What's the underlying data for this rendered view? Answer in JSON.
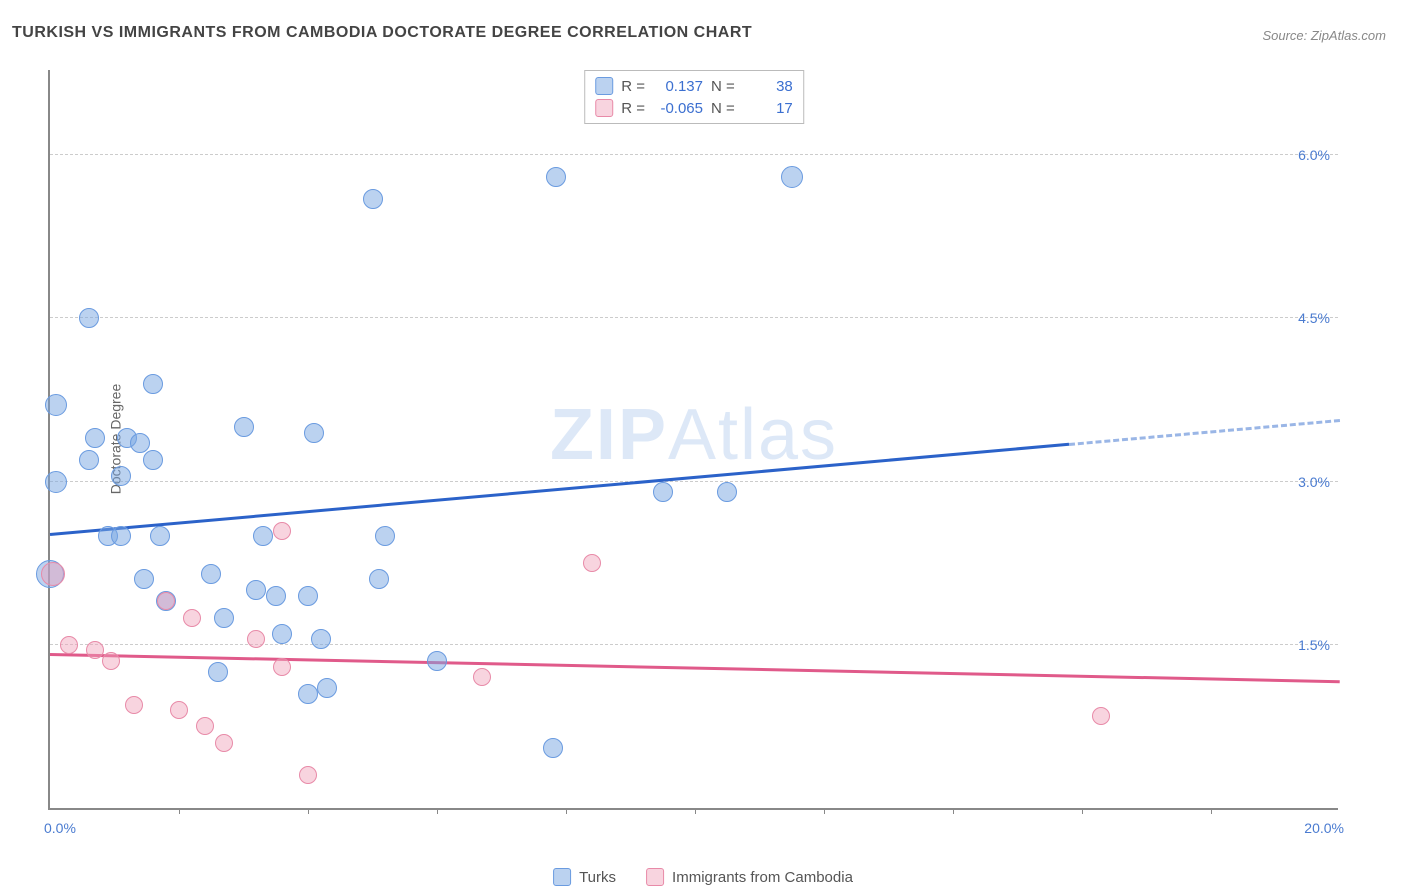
{
  "title": "TURKISH VS IMMIGRANTS FROM CAMBODIA DOCTORATE DEGREE CORRELATION CHART",
  "source_prefix": "Source: ",
  "source_name": "ZipAtlas.com",
  "ylabel": "Doctorate Degree",
  "watermark_bold": "ZIP",
  "watermark_rest": "Atlas",
  "chart": {
    "type": "scatter",
    "xlim": [
      0.0,
      20.0
    ],
    "ylim": [
      0.0,
      6.8
    ],
    "y_gridlines": [
      1.5,
      3.0,
      4.5,
      6.0
    ],
    "y_tick_labels": [
      "1.5%",
      "3.0%",
      "4.5%",
      "6.0%"
    ],
    "x_ticks": [
      2,
      4,
      6,
      8,
      10,
      12,
      14,
      16,
      18
    ],
    "x_first_label": "0.0%",
    "x_last_label": "20.0%",
    "grid_color": "#cccccc",
    "axis_color": "#888888",
    "background_color": "#ffffff",
    "series": [
      {
        "id": "a",
        "name": "Turks",
        "marker_fill": "rgba(120,165,225,0.5)",
        "marker_stroke": "#6a9be0",
        "line_color": "#2b62c9",
        "points": [
          {
            "x": 0.1,
            "y": 3.7,
            "r": 11
          },
          {
            "x": 0.1,
            "y": 3.0,
            "r": 11
          },
          {
            "x": 0.0,
            "y": 2.15,
            "r": 14
          },
          {
            "x": 0.6,
            "y": 4.5,
            "r": 10
          },
          {
            "x": 0.6,
            "y": 3.2,
            "r": 10
          },
          {
            "x": 0.7,
            "y": 3.4,
            "r": 10
          },
          {
            "x": 0.9,
            "y": 2.5,
            "r": 10
          },
          {
            "x": 1.1,
            "y": 3.05,
            "r": 10
          },
          {
            "x": 1.1,
            "y": 2.5,
            "r": 10
          },
          {
            "x": 1.2,
            "y": 3.4,
            "r": 10
          },
          {
            "x": 1.4,
            "y": 3.35,
            "r": 10
          },
          {
            "x": 1.45,
            "y": 2.1,
            "r": 10
          },
          {
            "x": 1.6,
            "y": 3.9,
            "r": 10
          },
          {
            "x": 1.6,
            "y": 3.2,
            "r": 10
          },
          {
            "x": 1.7,
            "y": 2.5,
            "r": 10
          },
          {
            "x": 1.8,
            "y": 1.9,
            "r": 10
          },
          {
            "x": 2.5,
            "y": 2.15,
            "r": 10
          },
          {
            "x": 2.6,
            "y": 1.25,
            "r": 10
          },
          {
            "x": 2.7,
            "y": 1.75,
            "r": 10
          },
          {
            "x": 3.0,
            "y": 3.5,
            "r": 10
          },
          {
            "x": 3.2,
            "y": 2.0,
            "r": 10
          },
          {
            "x": 3.3,
            "y": 2.5,
            "r": 10
          },
          {
            "x": 3.5,
            "y": 1.95,
            "r": 10
          },
          {
            "x": 3.6,
            "y": 1.6,
            "r": 10
          },
          {
            "x": 4.0,
            "y": 1.95,
            "r": 10
          },
          {
            "x": 4.0,
            "y": 1.05,
            "r": 10
          },
          {
            "x": 4.1,
            "y": 3.45,
            "r": 10
          },
          {
            "x": 4.2,
            "y": 1.55,
            "r": 10
          },
          {
            "x": 4.3,
            "y": 1.1,
            "r": 10
          },
          {
            "x": 5.0,
            "y": 5.6,
            "r": 10
          },
          {
            "x": 5.1,
            "y": 2.1,
            "r": 10
          },
          {
            "x": 5.2,
            "y": 2.5,
            "r": 10
          },
          {
            "x": 6.0,
            "y": 1.35,
            "r": 10
          },
          {
            "x": 7.85,
            "y": 5.8,
            "r": 10
          },
          {
            "x": 7.8,
            "y": 0.55,
            "r": 10
          },
          {
            "x": 9.5,
            "y": 2.9,
            "r": 10
          },
          {
            "x": 10.5,
            "y": 2.9,
            "r": 10
          },
          {
            "x": 11.5,
            "y": 5.8,
            "r": 11
          }
        ],
        "trend": {
          "x1": 0.0,
          "y1": 2.5,
          "x2": 20.0,
          "y2": 3.55,
          "solid_until_x": 15.8
        }
      },
      {
        "id": "b",
        "name": "Immigrants from Cambodia",
        "marker_fill": "rgba(240,160,185,0.45)",
        "marker_stroke": "#e88aa8",
        "line_color": "#e05a8a",
        "points": [
          {
            "x": 0.05,
            "y": 2.15,
            "r": 12
          },
          {
            "x": 0.3,
            "y": 1.5,
            "r": 9
          },
          {
            "x": 0.7,
            "y": 1.45,
            "r": 9
          },
          {
            "x": 0.95,
            "y": 1.35,
            "r": 9
          },
          {
            "x": 1.3,
            "y": 0.95,
            "r": 9
          },
          {
            "x": 1.8,
            "y": 1.9,
            "r": 9
          },
          {
            "x": 2.0,
            "y": 0.9,
            "r": 9
          },
          {
            "x": 2.2,
            "y": 1.75,
            "r": 9
          },
          {
            "x": 2.4,
            "y": 0.75,
            "r": 9
          },
          {
            "x": 2.7,
            "y": 0.6,
            "r": 9
          },
          {
            "x": 3.2,
            "y": 1.55,
            "r": 9
          },
          {
            "x": 3.6,
            "y": 2.55,
            "r": 9
          },
          {
            "x": 3.6,
            "y": 1.3,
            "r": 9
          },
          {
            "x": 4.0,
            "y": 0.3,
            "r": 9
          },
          {
            "x": 6.7,
            "y": 1.2,
            "r": 9
          },
          {
            "x": 8.4,
            "y": 2.25,
            "r": 9
          },
          {
            "x": 16.3,
            "y": 0.85,
            "r": 9
          }
        ],
        "trend": {
          "x1": 0.0,
          "y1": 1.4,
          "x2": 20.0,
          "y2": 1.15,
          "solid_until_x": 20.0
        }
      }
    ]
  },
  "stats_legend": {
    "rows": [
      {
        "series": "a",
        "r_label": "R =",
        "r_value": "0.137",
        "n_label": "N =",
        "n_value": "38"
      },
      {
        "series": "b",
        "r_label": "R =",
        "r_value": "-0.065",
        "n_label": "N =",
        "n_value": "17"
      }
    ]
  },
  "bottom_legend": [
    {
      "series": "a",
      "label": "Turks"
    },
    {
      "series": "b",
      "label": "Immigrants from Cambodia"
    }
  ]
}
